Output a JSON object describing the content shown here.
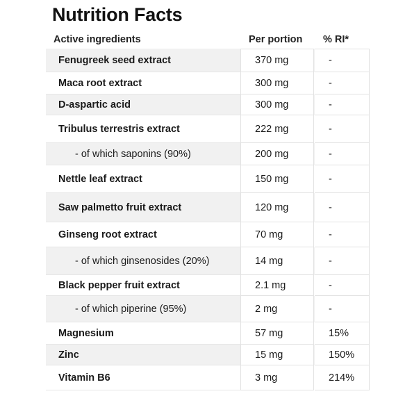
{
  "title": "Nutrition Facts",
  "headers": {
    "ingredients": "Active ingredients",
    "portion": "Per portion",
    "ri": "% RI*"
  },
  "rows": [
    {
      "name": "Fenugreek seed extract",
      "portion": "370 mg",
      "ri": "-",
      "sub": false
    },
    {
      "name": "Maca root extract",
      "portion": "300 mg",
      "ri": "-",
      "sub": false
    },
    {
      "name": "D-aspartic acid",
      "portion": "300 mg",
      "ri": "-",
      "sub": false
    },
    {
      "name": "Tribulus terrestris extract",
      "portion": "222 mg",
      "ri": "-",
      "sub": false
    },
    {
      "name": "- of which saponins (90%)",
      "portion": "200 mg",
      "ri": "-",
      "sub": true
    },
    {
      "name": "Nettle leaf extract",
      "portion": "150 mg",
      "ri": "-",
      "sub": false
    },
    {
      "name": "Saw palmetto fruit extract",
      "portion": "120 mg",
      "ri": "-",
      "sub": false
    },
    {
      "name": "Ginseng root extract",
      "portion": "70 mg",
      "ri": "-",
      "sub": false
    },
    {
      "name": "- of which ginsenosides (20%)",
      "portion": "14 mg",
      "ri": "-",
      "sub": true
    },
    {
      "name": "Black pepper fruit extract",
      "portion": "2.1 mg",
      "ri": "-",
      "sub": false
    },
    {
      "name": "- of which piperine (95%)",
      "portion": "2 mg",
      "ri": "-",
      "sub": true
    },
    {
      "name": "Magnesium",
      "portion": "57 mg",
      "ri": "15%",
      "sub": false
    },
    {
      "name": "Zinc",
      "portion": "15 mg",
      "ri": "150%",
      "sub": false
    },
    {
      "name": "Vitamin B6",
      "portion": "3 mg",
      "ri": "214%",
      "sub": false
    }
  ]
}
